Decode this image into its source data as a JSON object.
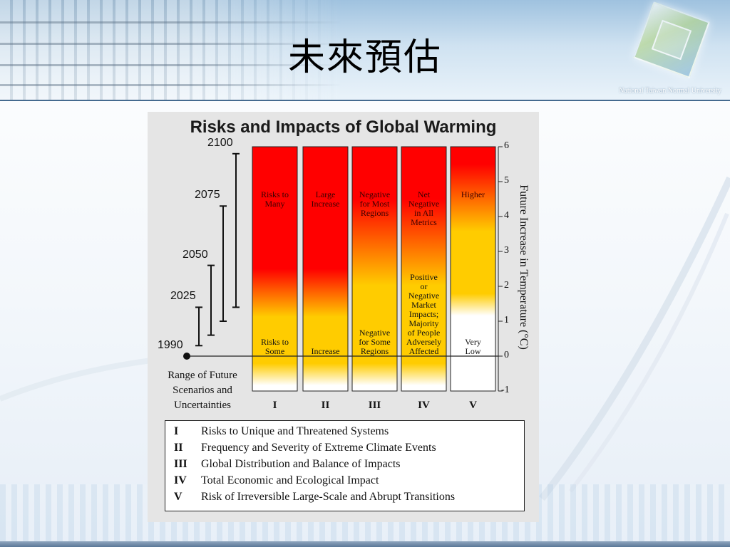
{
  "slide": {
    "title": "未來預估",
    "university_name": "National Taiwan Normal University"
  },
  "colors": {
    "banner_line": "#3a5f86",
    "hot": "#ff0000",
    "warm": "#ffcc00",
    "cool": "#ffffff"
  },
  "chart_data": {
    "type": "bar",
    "title": "Risks and Impacts of Global Warming",
    "ylabel": "Future Increase in Temperature (°C)",
    "ylim": [
      -1,
      6
    ],
    "yticks": [
      "6",
      "5",
      "4",
      "3",
      "2",
      "1",
      "0",
      "-1"
    ],
    "categories": [
      "I",
      "II",
      "III",
      "IV",
      "V"
    ],
    "bars": [
      {
        "category": "I",
        "top_label": "Risks to\nMany",
        "low_label": "Risks to\nSome",
        "red_from_c": 2.5,
        "yellow_to_c": 0
      },
      {
        "category": "II",
        "top_label": "Large\nIncrease",
        "low_label": "Increase",
        "red_from_c": 2.5,
        "yellow_to_c": 0
      },
      {
        "category": "III",
        "top_label": "Negative\nfor Most\nRegions",
        "low_label": "Negative\nfor Some\nRegions",
        "red_from_c": 4.5,
        "yellow_to_c": 0
      },
      {
        "category": "IV",
        "top_label": "Net\nNegative\nin All\nMetrics",
        "low_label": "Positive\nor\nNegative\nMarket\nImpacts;\nMajority\nof People\nAdversely\nAffected",
        "red_from_c": 4.5,
        "yellow_to_c": 0
      },
      {
        "category": "V",
        "top_label": "Higher",
        "low_label": "Very\nLow",
        "red_from_c": 5.5,
        "yellow_to_c": 2
      }
    ],
    "scenario_ranges": [
      {
        "year": "2100",
        "min_c": 1.4,
        "max_c": 5.8
      },
      {
        "year": "2075",
        "min_c": 1.0,
        "max_c": 4.3
      },
      {
        "year": "2050",
        "min_c": 0.6,
        "max_c": 2.6
      },
      {
        "year": "2025",
        "min_c": 0.3,
        "max_c": 1.4
      }
    ],
    "baseline_year": "1990",
    "range_label": "Range of Future\nScenarios and\nUncertainties",
    "legend": [
      {
        "num": "I",
        "text": "Risks to Unique and Threatened Systems"
      },
      {
        "num": "II",
        "text": "Frequency and Severity of Extreme Climate Events"
      },
      {
        "num": "III",
        "text": "Global Distribution and Balance of Impacts"
      },
      {
        "num": "IV",
        "text": "Total Economic and Ecological Impact"
      },
      {
        "num": "V",
        "text": "Risk of Irreversible Large-Scale and Abrupt Transitions"
      }
    ]
  }
}
